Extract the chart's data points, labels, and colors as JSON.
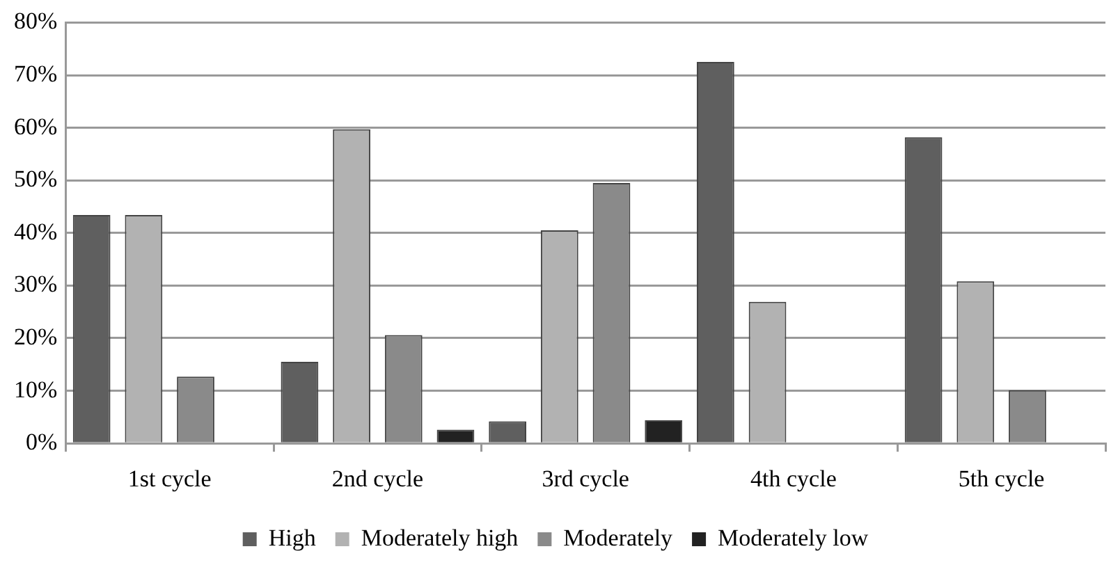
{
  "chart_data": {
    "type": "bar",
    "categories": [
      "1st cycle",
      "2nd cycle",
      "3rd cycle",
      "4th cycle",
      "5th cycle"
    ],
    "series": [
      {
        "name": "High",
        "color": "#5f5f5f",
        "values": [
          43.4,
          15.5,
          4.2,
          72.5,
          58.2
        ]
      },
      {
        "name": "Moderately high",
        "color": "#b2b2b2",
        "values": [
          43.4,
          59.7,
          40.5,
          26.9,
          30.8
        ]
      },
      {
        "name": "Moderately",
        "color": "#8a8a8a",
        "values": [
          12.7,
          20.6,
          49.5,
          0,
          10.1
        ]
      },
      {
        "name": "Moderately low",
        "color": "#222222",
        "values": [
          0,
          2.6,
          4.4,
          0,
          0
        ]
      }
    ],
    "ylim": [
      0,
      80
    ],
    "yticks": [
      {
        "value": 0,
        "label": "0%"
      },
      {
        "value": 10,
        "label": "10%"
      },
      {
        "value": 20,
        "label": "20%"
      },
      {
        "value": 30,
        "label": "30%"
      },
      {
        "value": 40,
        "label": "40%"
      },
      {
        "value": 50,
        "label": "50%"
      },
      {
        "value": 60,
        "label": "60%"
      },
      {
        "value": 70,
        "label": "70%"
      },
      {
        "value": 80,
        "label": "80%"
      }
    ],
    "grid": "y",
    "legend": "bottom"
  }
}
